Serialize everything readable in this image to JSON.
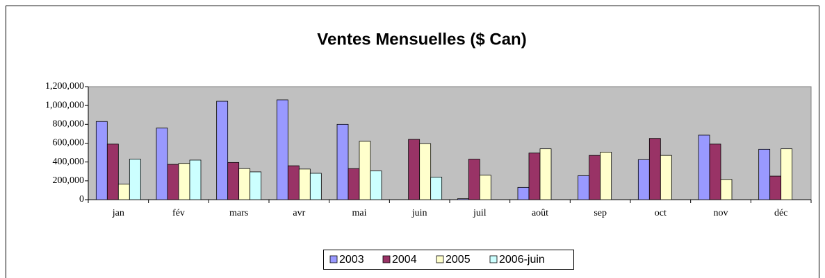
{
  "chart_data": {
    "type": "bar",
    "title": "Ventes Mensuelles ($ Can)",
    "categories": [
      "jan",
      "fév",
      "mars",
      "avr",
      "mai",
      "juin",
      "juil",
      "août",
      "sep",
      "oct",
      "nov",
      "déc"
    ],
    "series": [
      {
        "name": "2003",
        "color": "#9999ff",
        "values": [
          830000,
          760000,
          1045000,
          1060000,
          800000,
          null,
          10000,
          130000,
          255000,
          425000,
          685000,
          535000
        ]
      },
      {
        "name": "2004",
        "color": "#993366",
        "values": [
          590000,
          375000,
          395000,
          360000,
          330000,
          640000,
          430000,
          495000,
          470000,
          650000,
          590000,
          250000
        ]
      },
      {
        "name": "2005",
        "color": "#ffffcc",
        "values": [
          165000,
          385000,
          330000,
          325000,
          620000,
          595000,
          260000,
          540000,
          505000,
          470000,
          215000,
          540000
        ]
      },
      {
        "name": "2006-juin",
        "color": "#ccffff",
        "values": [
          430000,
          420000,
          295000,
          280000,
          305000,
          240000,
          null,
          null,
          null,
          null,
          null,
          null
        ]
      }
    ],
    "ylim": [
      0,
      1200000
    ],
    "yticks": [
      0,
      {
        "value": 200000,
        "label": "200,000"
      },
      {
        "value": 400000,
        "label": "400,000"
      },
      {
        "value": 600000,
        "label": "600,000"
      },
      {
        "value": 800000,
        "label": "800,000"
      },
      {
        "value": 1000000,
        "label": "1,000,000"
      },
      {
        "value": 1200000,
        "label": "1,200,000"
      }
    ],
    "plot_background": "#c0c0c0",
    "legend": "bottom"
  }
}
